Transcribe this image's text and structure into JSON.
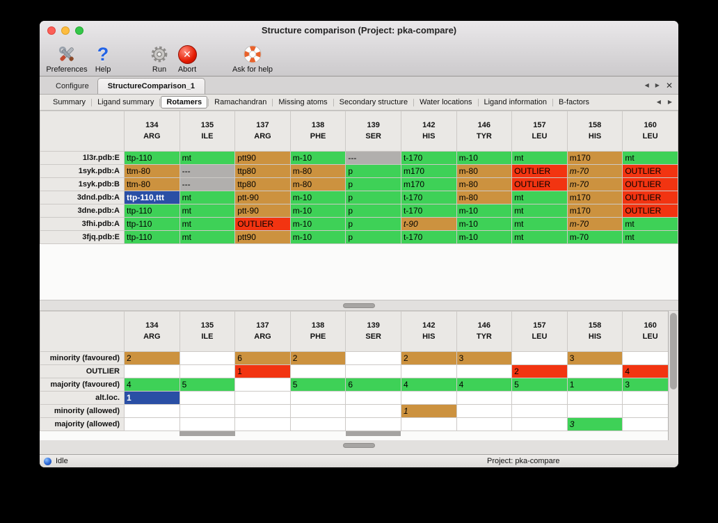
{
  "window": {
    "title": "Structure comparison (Project: pka-compare)"
  },
  "icons": {
    "back": "◀",
    "forward": "▶",
    "close_x": "✕",
    "abort_x": "✕",
    "question": "?"
  },
  "toolbar": {
    "items": [
      {
        "label": "Preferences",
        "icon": "tools-icon"
      },
      {
        "label": "Help",
        "icon": "question-icon"
      },
      {
        "label": "Run",
        "icon": "gear-icon"
      },
      {
        "label": "Abort",
        "icon": "abort-icon"
      },
      {
        "label": "Ask for help",
        "icon": "lifebuoy-icon"
      }
    ]
  },
  "doc_tabs": {
    "inactive": "Configure",
    "active": "StructureComparison_1"
  },
  "subtabs": {
    "items": [
      "Summary",
      "Ligand summary",
      "Rotamers",
      "Ramachandran",
      "Missing atoms",
      "Secondary structure",
      "Water locations",
      "Ligand information",
      "B-factors"
    ],
    "active": "Rotamers"
  },
  "colors": {
    "green": "#3ed157",
    "orange": "#cc923f",
    "red": "#f23411",
    "gray": "#b1afad",
    "blue": "#2a4fa5"
  },
  "columns": [
    {
      "num": "134",
      "res": "ARG"
    },
    {
      "num": "135",
      "res": "ILE"
    },
    {
      "num": "137",
      "res": "ARG"
    },
    {
      "num": "138",
      "res": "PHE"
    },
    {
      "num": "139",
      "res": "SER"
    },
    {
      "num": "142",
      "res": "HIS"
    },
    {
      "num": "146",
      "res": "TYR"
    },
    {
      "num": "157",
      "res": "LEU"
    },
    {
      "num": "158",
      "res": "HIS"
    },
    {
      "num": "160",
      "res": "LEU"
    }
  ],
  "top_table": {
    "rows": [
      {
        "label": "1l3r.pdb:E",
        "cells": [
          [
            "ttp-110",
            "green"
          ],
          [
            "mt",
            "green"
          ],
          [
            "ptt90",
            "orange"
          ],
          [
            "m-10",
            "green"
          ],
          [
            "---",
            "gray"
          ],
          [
            "t-170",
            "green"
          ],
          [
            "m-10",
            "green"
          ],
          [
            "mt",
            "green"
          ],
          [
            "m170",
            "orange"
          ],
          [
            "mt",
            "green"
          ]
        ]
      },
      {
        "label": "1syk.pdb:A",
        "cells": [
          [
            "ttm-80",
            "orange"
          ],
          [
            "---",
            "gray"
          ],
          [
            "ttp80",
            "orange"
          ],
          [
            "m-80",
            "orange"
          ],
          [
            "p",
            "green"
          ],
          [
            "m170",
            "green"
          ],
          [
            "m-80",
            "orange"
          ],
          [
            "OUTLIER",
            "red"
          ],
          [
            "m-70",
            "orange",
            "i"
          ],
          [
            "OUTLIER",
            "red"
          ]
        ]
      },
      {
        "label": "1syk.pdb:B",
        "cells": [
          [
            "ttm-80",
            "orange"
          ],
          [
            "---",
            "gray"
          ],
          [
            "ttp80",
            "orange"
          ],
          [
            "m-80",
            "orange"
          ],
          [
            "p",
            "green"
          ],
          [
            "m170",
            "green"
          ],
          [
            "m-80",
            "orange"
          ],
          [
            "OUTLIER",
            "red"
          ],
          [
            "m-70",
            "orange",
            "i"
          ],
          [
            "OUTLIER",
            "red"
          ]
        ]
      },
      {
        "label": "3dnd.pdb:A",
        "cells": [
          [
            "ttp-110,ttt",
            "blue"
          ],
          [
            "mt",
            "green"
          ],
          [
            "ptt-90",
            "orange"
          ],
          [
            "m-10",
            "green"
          ],
          [
            "p",
            "green"
          ],
          [
            "t-170",
            "green"
          ],
          [
            "m-80",
            "orange"
          ],
          [
            "mt",
            "green"
          ],
          [
            "m170",
            "orange"
          ],
          [
            "OUTLIER",
            "red"
          ]
        ]
      },
      {
        "label": "3dne.pdb:A",
        "cells": [
          [
            "ttp-110",
            "green"
          ],
          [
            "mt",
            "green"
          ],
          [
            "ptt-90",
            "orange"
          ],
          [
            "m-10",
            "green"
          ],
          [
            "p",
            "green"
          ],
          [
            "t-170",
            "green"
          ],
          [
            "m-10",
            "green"
          ],
          [
            "mt",
            "green"
          ],
          [
            "m170",
            "orange"
          ],
          [
            "OUTLIER",
            "red"
          ]
        ]
      },
      {
        "label": "3fhi.pdb:A",
        "cells": [
          [
            "ttp-110",
            "green"
          ],
          [
            "mt",
            "green"
          ],
          [
            "OUTLIER",
            "red"
          ],
          [
            "m-10",
            "green"
          ],
          [
            "p",
            "green"
          ],
          [
            "t-90",
            "orange",
            "i"
          ],
          [
            "m-10",
            "green"
          ],
          [
            "mt",
            "green"
          ],
          [
            "m-70",
            "orange",
            "i"
          ],
          [
            "mt",
            "green"
          ]
        ]
      },
      {
        "label": "3fjq.pdb:E",
        "cells": [
          [
            "ttp-110",
            "green"
          ],
          [
            "mt",
            "green"
          ],
          [
            "ptt90",
            "orange"
          ],
          [
            "m-10",
            "green"
          ],
          [
            "p",
            "green"
          ],
          [
            "t-170",
            "green"
          ],
          [
            "m-10",
            "green"
          ],
          [
            "mt",
            "green"
          ],
          [
            "m-70",
            "green"
          ],
          [
            "mt",
            "green"
          ]
        ]
      }
    ]
  },
  "bottom_table": {
    "partial_gray_columns": [
      1,
      4
    ],
    "rows": [
      {
        "label": "minority (favoured)",
        "cells": [
          [
            "2",
            "orange"
          ],
          [
            "",
            ""
          ],
          [
            "6",
            "orange"
          ],
          [
            "2",
            "orange"
          ],
          [
            "",
            ""
          ],
          [
            "2",
            "orange"
          ],
          [
            "3",
            "orange"
          ],
          [
            "",
            ""
          ],
          [
            "3",
            "orange"
          ],
          [
            "",
            ""
          ]
        ]
      },
      {
        "label": "OUTLIER",
        "cells": [
          [
            "",
            ""
          ],
          [
            "",
            ""
          ],
          [
            "1",
            "red"
          ],
          [
            "",
            ""
          ],
          [
            "",
            ""
          ],
          [
            "",
            ""
          ],
          [
            "",
            ""
          ],
          [
            "2",
            "red"
          ],
          [
            "",
            ""
          ],
          [
            "4",
            "red"
          ]
        ]
      },
      {
        "label": "majority (favoured)",
        "cells": [
          [
            "4",
            "green"
          ],
          [
            "5",
            "green"
          ],
          [
            "",
            ""
          ],
          [
            "5",
            "green"
          ],
          [
            "6",
            "green"
          ],
          [
            "4",
            "green"
          ],
          [
            "4",
            "green"
          ],
          [
            "5",
            "green"
          ],
          [
            "1",
            "green"
          ],
          [
            "3",
            "green"
          ]
        ]
      },
      {
        "label": "alt.loc.",
        "cells": [
          [
            "1",
            "blue"
          ],
          [
            "",
            ""
          ],
          [
            "",
            ""
          ],
          [
            "",
            ""
          ],
          [
            "",
            ""
          ],
          [
            "",
            ""
          ],
          [
            "",
            ""
          ],
          [
            "",
            ""
          ],
          [
            "",
            ""
          ],
          [
            "",
            ""
          ]
        ]
      },
      {
        "label": "minority (allowed)",
        "cells": [
          [
            "",
            ""
          ],
          [
            "",
            ""
          ],
          [
            "",
            ""
          ],
          [
            "",
            ""
          ],
          [
            "",
            ""
          ],
          [
            "1",
            "orange",
            "i"
          ],
          [
            "",
            ""
          ],
          [
            "",
            ""
          ],
          [
            "",
            ""
          ],
          [
            "",
            ""
          ]
        ]
      },
      {
        "label": "majority (allowed)",
        "cells": [
          [
            "",
            ""
          ],
          [
            "",
            ""
          ],
          [
            "",
            ""
          ],
          [
            "",
            ""
          ],
          [
            "",
            ""
          ],
          [
            "",
            ""
          ],
          [
            "",
            ""
          ],
          [
            "",
            ""
          ],
          [
            "3",
            "green",
            "i"
          ],
          [
            "",
            ""
          ]
        ]
      }
    ]
  },
  "status": {
    "state": "Idle",
    "project": "Project: pka-compare"
  }
}
